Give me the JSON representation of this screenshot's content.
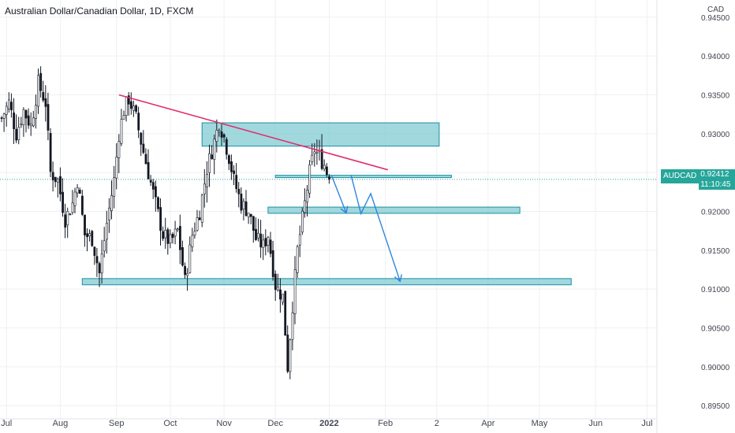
{
  "header": {
    "title": "Australian Dollar/Canadian Dollar, 1D, FXCM",
    "currency": "CAD"
  },
  "price_tag": {
    "symbol": "AUDCAD",
    "price": "0.92412",
    "countdown": "11:10:45"
  },
  "colors": {
    "candle": "#131722",
    "zone_fill": "#80cbd3",
    "zone_border": "#1b8fa3",
    "trendline": "#e0306f",
    "arrow": "#2e86de",
    "tag": "#26a69a"
  },
  "chart_data": {
    "type": "candlestick",
    "title": "Australian Dollar/Canadian Dollar, 1D, FXCM",
    "ylabel": "CAD",
    "ylim": [
      0.8935,
      0.9465
    ],
    "y_ticks": [
      "0.89500",
      "0.90000",
      "0.90500",
      "0.91000",
      "0.91500",
      "0.92000",
      "0.92500",
      "0.93000",
      "0.93500",
      "0.94000",
      "0.94500"
    ],
    "x_ticks": [
      {
        "label": "Jul",
        "i": 2
      },
      {
        "label": "Aug",
        "i": 24
      },
      {
        "label": "Sep",
        "i": 47
      },
      {
        "label": "Oct",
        "i": 69
      },
      {
        "label": "Nov",
        "i": 91
      },
      {
        "label": "Dec",
        "i": 112
      },
      {
        "label": "2022",
        "i": 134,
        "bold": true
      },
      {
        "label": "Feb",
        "i": 157
      },
      {
        "label": "2",
        "i": 178
      },
      {
        "label": "Apr",
        "i": 199
      },
      {
        "label": "May",
        "i": 220
      },
      {
        "label": "Jun",
        "i": 243
      },
      {
        "label": "Jul",
        "i": 264
      }
    ],
    "last_price": 0.92412,
    "anchors": [
      [
        0,
        0.932
      ],
      [
        3,
        0.934
      ],
      [
        6,
        0.93
      ],
      [
        9,
        0.933
      ],
      [
        12,
        0.931
      ],
      [
        15,
        0.9365
      ],
      [
        18,
        0.934
      ],
      [
        20,
        0.925
      ],
      [
        23,
        0.924
      ],
      [
        26,
        0.919
      ],
      [
        29,
        0.921
      ],
      [
        31,
        0.924
      ],
      [
        34,
        0.917
      ],
      [
        37,
        0.9165
      ],
      [
        40,
        0.912
      ],
      [
        43,
        0.9185
      ],
      [
        46,
        0.924
      ],
      [
        48,
        0.93
      ],
      [
        50,
        0.933
      ],
      [
        52,
        0.9345
      ],
      [
        55,
        0.932
      ],
      [
        57,
        0.929
      ],
      [
        60,
        0.925
      ],
      [
        63,
        0.921
      ],
      [
        66,
        0.917
      ],
      [
        69,
        0.916
      ],
      [
        72,
        0.9175
      ],
      [
        75,
        0.911
      ],
      [
        78,
        0.917
      ],
      [
        81,
        0.92
      ],
      [
        84,
        0.9255
      ],
      [
        87,
        0.929
      ],
      [
        89,
        0.9315
      ],
      [
        91,
        0.9295
      ],
      [
        93,
        0.927
      ],
      [
        95,
        0.924
      ],
      [
        98,
        0.921
      ],
      [
        101,
        0.92
      ],
      [
        104,
        0.9165
      ],
      [
        107,
        0.9155
      ],
      [
        109,
        0.917
      ],
      [
        112,
        0.9105
      ],
      [
        115,
        0.909
      ],
      [
        117,
        0.9
      ],
      [
        119,
        0.908
      ],
      [
        121,
        0.915
      ],
      [
        124,
        0.921
      ],
      [
        126,
        0.925
      ],
      [
        128,
        0.928
      ],
      [
        130,
        0.927
      ],
      [
        132,
        0.926
      ],
      [
        134,
        0.9241
      ]
    ],
    "zones": [
      {
        "i0": 82,
        "i1": 179,
        "y0": 0.9284,
        "y1": 0.9314
      },
      {
        "i0": 112,
        "i1": 184,
        "y0": 0.92435,
        "y1": 0.92465
      },
      {
        "i0": 109,
        "i1": 212,
        "y0": 0.91975,
        "y1": 0.92055
      },
      {
        "i0": 33,
        "i1": 233,
        "y0": 0.91055,
        "y1": 0.91135
      }
    ],
    "trendline": {
      "i0": 48,
      "y0": 0.935,
      "i1": 158,
      "y1": 0.92535
    },
    "arrows": [
      [
        [
          135,
          0.9246
        ],
        [
          141,
          0.9198
        ]
      ],
      [
        [
          143,
          0.9246
        ],
        [
          147,
          0.9197
        ],
        [
          151,
          0.9223
        ],
        [
          163,
          0.911
        ]
      ]
    ]
  }
}
